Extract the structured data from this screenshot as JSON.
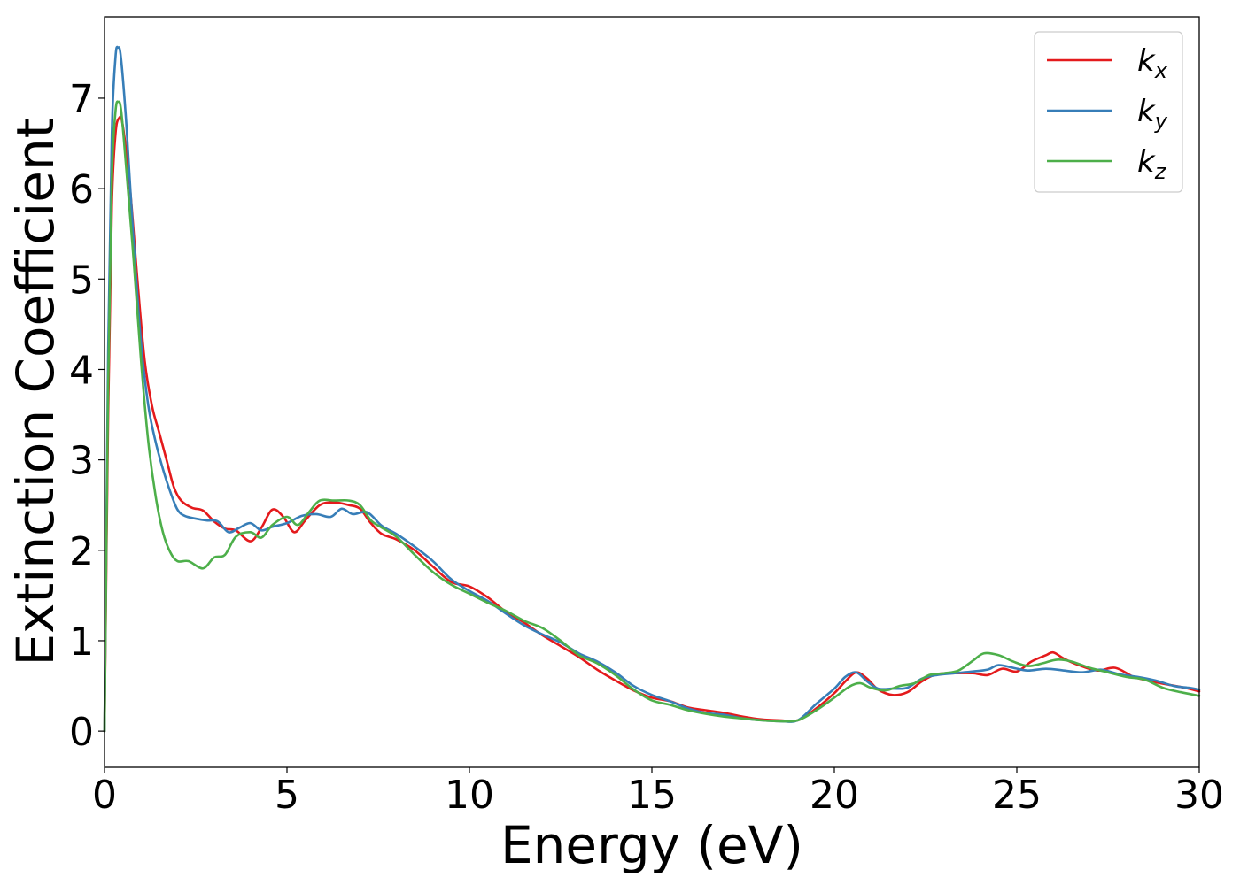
{
  "chart_data": {
    "type": "line",
    "title": "",
    "xlabel": "Energy (eV)",
    "ylabel": "Extinction Coefficient",
    "xlim": [
      0,
      30
    ],
    "ylim": [
      -0.4,
      7.9
    ],
    "xticks": [
      0,
      5,
      10,
      15,
      20,
      25,
      30
    ],
    "yticks": [
      0,
      1,
      2,
      3,
      4,
      5,
      6,
      7
    ],
    "grid": false,
    "legend_position": "top-right",
    "series": [
      {
        "name": "k_x",
        "legend_main": "k",
        "legend_sub": "x",
        "color": "#e41a1c",
        "points": [
          [
            0,
            0
          ],
          [
            0.1,
            3.5
          ],
          [
            0.2,
            5.8
          ],
          [
            0.3,
            6.6
          ],
          [
            0.4,
            6.78
          ],
          [
            0.5,
            6.7
          ],
          [
            0.7,
            6.0
          ],
          [
            0.9,
            5.0
          ],
          [
            1.1,
            4.1
          ],
          [
            1.3,
            3.6
          ],
          [
            1.5,
            3.3
          ],
          [
            1.7,
            3.0
          ],
          [
            1.9,
            2.7
          ],
          [
            2.1,
            2.55
          ],
          [
            2.4,
            2.47
          ],
          [
            2.7,
            2.44
          ],
          [
            3.0,
            2.32
          ],
          [
            3.3,
            2.24
          ],
          [
            3.6,
            2.22
          ],
          [
            4.0,
            2.1
          ],
          [
            4.3,
            2.25
          ],
          [
            4.6,
            2.45
          ],
          [
            4.9,
            2.37
          ],
          [
            5.2,
            2.2
          ],
          [
            5.5,
            2.33
          ],
          [
            5.9,
            2.5
          ],
          [
            6.3,
            2.53
          ],
          [
            6.7,
            2.5
          ],
          [
            7.0,
            2.46
          ],
          [
            7.3,
            2.3
          ],
          [
            7.6,
            2.18
          ],
          [
            8.0,
            2.12
          ],
          [
            8.5,
            2.0
          ],
          [
            9.0,
            1.82
          ],
          [
            9.5,
            1.65
          ],
          [
            10.0,
            1.6
          ],
          [
            10.5,
            1.48
          ],
          [
            11.0,
            1.32
          ],
          [
            11.5,
            1.2
          ],
          [
            12.0,
            1.06
          ],
          [
            12.5,
            0.94
          ],
          [
            13.0,
            0.82
          ],
          [
            13.5,
            0.68
          ],
          [
            14.0,
            0.56
          ],
          [
            14.5,
            0.45
          ],
          [
            15.0,
            0.37
          ],
          [
            15.5,
            0.33
          ],
          [
            16.0,
            0.26
          ],
          [
            16.5,
            0.23
          ],
          [
            17.0,
            0.2
          ],
          [
            17.5,
            0.16
          ],
          [
            18.0,
            0.13
          ],
          [
            18.5,
            0.12
          ],
          [
            19.0,
            0.12
          ],
          [
            19.5,
            0.25
          ],
          [
            20.0,
            0.42
          ],
          [
            20.3,
            0.55
          ],
          [
            20.6,
            0.65
          ],
          [
            20.9,
            0.58
          ],
          [
            21.2,
            0.46
          ],
          [
            21.6,
            0.4
          ],
          [
            22.0,
            0.43
          ],
          [
            22.4,
            0.55
          ],
          [
            22.8,
            0.63
          ],
          [
            23.3,
            0.64
          ],
          [
            23.8,
            0.64
          ],
          [
            24.2,
            0.62
          ],
          [
            24.6,
            0.69
          ],
          [
            25.0,
            0.66
          ],
          [
            25.4,
            0.77
          ],
          [
            25.8,
            0.84
          ],
          [
            26.0,
            0.87
          ],
          [
            26.3,
            0.8
          ],
          [
            26.7,
            0.73
          ],
          [
            27.2,
            0.67
          ],
          [
            27.7,
            0.7
          ],
          [
            28.2,
            0.6
          ],
          [
            28.7,
            0.55
          ],
          [
            29.2,
            0.51
          ],
          [
            29.6,
            0.48
          ],
          [
            30.0,
            0.44
          ]
        ]
      },
      {
        "name": "k_y",
        "legend_main": "k",
        "legend_sub": "y",
        "color": "#377eb8",
        "points": [
          [
            0,
            0
          ],
          [
            0.1,
            4.2
          ],
          [
            0.2,
            6.6
          ],
          [
            0.3,
            7.45
          ],
          [
            0.37,
            7.56
          ],
          [
            0.45,
            7.45
          ],
          [
            0.6,
            6.7
          ],
          [
            0.8,
            5.4
          ],
          [
            1.0,
            4.3
          ],
          [
            1.2,
            3.6
          ],
          [
            1.4,
            3.2
          ],
          [
            1.6,
            2.9
          ],
          [
            1.8,
            2.65
          ],
          [
            2.0,
            2.45
          ],
          [
            2.2,
            2.38
          ],
          [
            2.5,
            2.35
          ],
          [
            2.8,
            2.33
          ],
          [
            3.1,
            2.32
          ],
          [
            3.4,
            2.2
          ],
          [
            3.7,
            2.25
          ],
          [
            4.0,
            2.3
          ],
          [
            4.3,
            2.22
          ],
          [
            4.6,
            2.26
          ],
          [
            5.0,
            2.3
          ],
          [
            5.4,
            2.38
          ],
          [
            5.8,
            2.4
          ],
          [
            6.2,
            2.37
          ],
          [
            6.5,
            2.46
          ],
          [
            6.8,
            2.4
          ],
          [
            7.2,
            2.42
          ],
          [
            7.6,
            2.27
          ],
          [
            8.0,
            2.18
          ],
          [
            8.5,
            2.04
          ],
          [
            9.0,
            1.88
          ],
          [
            9.5,
            1.68
          ],
          [
            10.0,
            1.55
          ],
          [
            10.5,
            1.44
          ],
          [
            11.0,
            1.3
          ],
          [
            11.5,
            1.17
          ],
          [
            12.0,
            1.07
          ],
          [
            12.5,
            0.98
          ],
          [
            13.0,
            0.86
          ],
          [
            13.5,
            0.77
          ],
          [
            14.0,
            0.65
          ],
          [
            14.5,
            0.5
          ],
          [
            15.0,
            0.4
          ],
          [
            15.5,
            0.33
          ],
          [
            16.0,
            0.25
          ],
          [
            16.5,
            0.2
          ],
          [
            17.0,
            0.18
          ],
          [
            17.5,
            0.14
          ],
          [
            18.0,
            0.12
          ],
          [
            18.5,
            0.11
          ],
          [
            19.0,
            0.12
          ],
          [
            19.5,
            0.3
          ],
          [
            20.0,
            0.47
          ],
          [
            20.3,
            0.6
          ],
          [
            20.6,
            0.65
          ],
          [
            20.9,
            0.55
          ],
          [
            21.2,
            0.47
          ],
          [
            21.6,
            0.47
          ],
          [
            22.0,
            0.48
          ],
          [
            22.4,
            0.58
          ],
          [
            22.8,
            0.62
          ],
          [
            23.3,
            0.64
          ],
          [
            23.8,
            0.66
          ],
          [
            24.2,
            0.68
          ],
          [
            24.5,
            0.73
          ],
          [
            24.9,
            0.7
          ],
          [
            25.3,
            0.67
          ],
          [
            25.8,
            0.69
          ],
          [
            26.3,
            0.67
          ],
          [
            26.8,
            0.65
          ],
          [
            27.3,
            0.68
          ],
          [
            27.8,
            0.63
          ],
          [
            28.3,
            0.6
          ],
          [
            28.8,
            0.56
          ],
          [
            29.3,
            0.5
          ],
          [
            29.7,
            0.48
          ],
          [
            30.0,
            0.46
          ]
        ]
      },
      {
        "name": "k_z",
        "legend_main": "k",
        "legend_sub": "z",
        "color": "#4daf4a",
        "points": [
          [
            0,
            0
          ],
          [
            0.1,
            3.8
          ],
          [
            0.2,
            6.1
          ],
          [
            0.3,
            6.85
          ],
          [
            0.38,
            6.96
          ],
          [
            0.46,
            6.85
          ],
          [
            0.6,
            6.2
          ],
          [
            0.8,
            5.2
          ],
          [
            1.0,
            4.1
          ],
          [
            1.2,
            3.2
          ],
          [
            1.4,
            2.6
          ],
          [
            1.6,
            2.2
          ],
          [
            1.8,
            1.98
          ],
          [
            2.0,
            1.88
          ],
          [
            2.3,
            1.88
          ],
          [
            2.7,
            1.8
          ],
          [
            3.0,
            1.92
          ],
          [
            3.3,
            1.95
          ],
          [
            3.6,
            2.15
          ],
          [
            4.0,
            2.2
          ],
          [
            4.3,
            2.14
          ],
          [
            4.6,
            2.28
          ],
          [
            5.0,
            2.37
          ],
          [
            5.3,
            2.28
          ],
          [
            5.6,
            2.42
          ],
          [
            5.9,
            2.55
          ],
          [
            6.3,
            2.55
          ],
          [
            6.7,
            2.55
          ],
          [
            7.0,
            2.5
          ],
          [
            7.3,
            2.33
          ],
          [
            7.6,
            2.25
          ],
          [
            8.0,
            2.15
          ],
          [
            8.5,
            1.95
          ],
          [
            9.0,
            1.76
          ],
          [
            9.5,
            1.62
          ],
          [
            10.0,
            1.52
          ],
          [
            10.5,
            1.42
          ],
          [
            11.0,
            1.33
          ],
          [
            11.5,
            1.22
          ],
          [
            12.0,
            1.14
          ],
          [
            12.5,
            1.0
          ],
          [
            13.0,
            0.84
          ],
          [
            13.5,
            0.75
          ],
          [
            14.0,
            0.62
          ],
          [
            14.5,
            0.46
          ],
          [
            15.0,
            0.34
          ],
          [
            15.5,
            0.29
          ],
          [
            16.0,
            0.23
          ],
          [
            16.5,
            0.19
          ],
          [
            17.0,
            0.16
          ],
          [
            17.5,
            0.14
          ],
          [
            18.0,
            0.12
          ],
          [
            18.5,
            0.11
          ],
          [
            19.0,
            0.12
          ],
          [
            19.5,
            0.23
          ],
          [
            20.0,
            0.37
          ],
          [
            20.4,
            0.49
          ],
          [
            20.7,
            0.53
          ],
          [
            21.0,
            0.48
          ],
          [
            21.4,
            0.45
          ],
          [
            21.8,
            0.5
          ],
          [
            22.2,
            0.53
          ],
          [
            22.6,
            0.62
          ],
          [
            23.0,
            0.64
          ],
          [
            23.4,
            0.67
          ],
          [
            23.8,
            0.78
          ],
          [
            24.1,
            0.86
          ],
          [
            24.5,
            0.84
          ],
          [
            24.9,
            0.77
          ],
          [
            25.3,
            0.72
          ],
          [
            25.7,
            0.75
          ],
          [
            26.1,
            0.79
          ],
          [
            26.5,
            0.77
          ],
          [
            27.0,
            0.7
          ],
          [
            27.5,
            0.65
          ],
          [
            28.0,
            0.6
          ],
          [
            28.5,
            0.57
          ],
          [
            29.0,
            0.48
          ],
          [
            29.5,
            0.43
          ],
          [
            30.0,
            0.39
          ]
        ]
      }
    ]
  }
}
